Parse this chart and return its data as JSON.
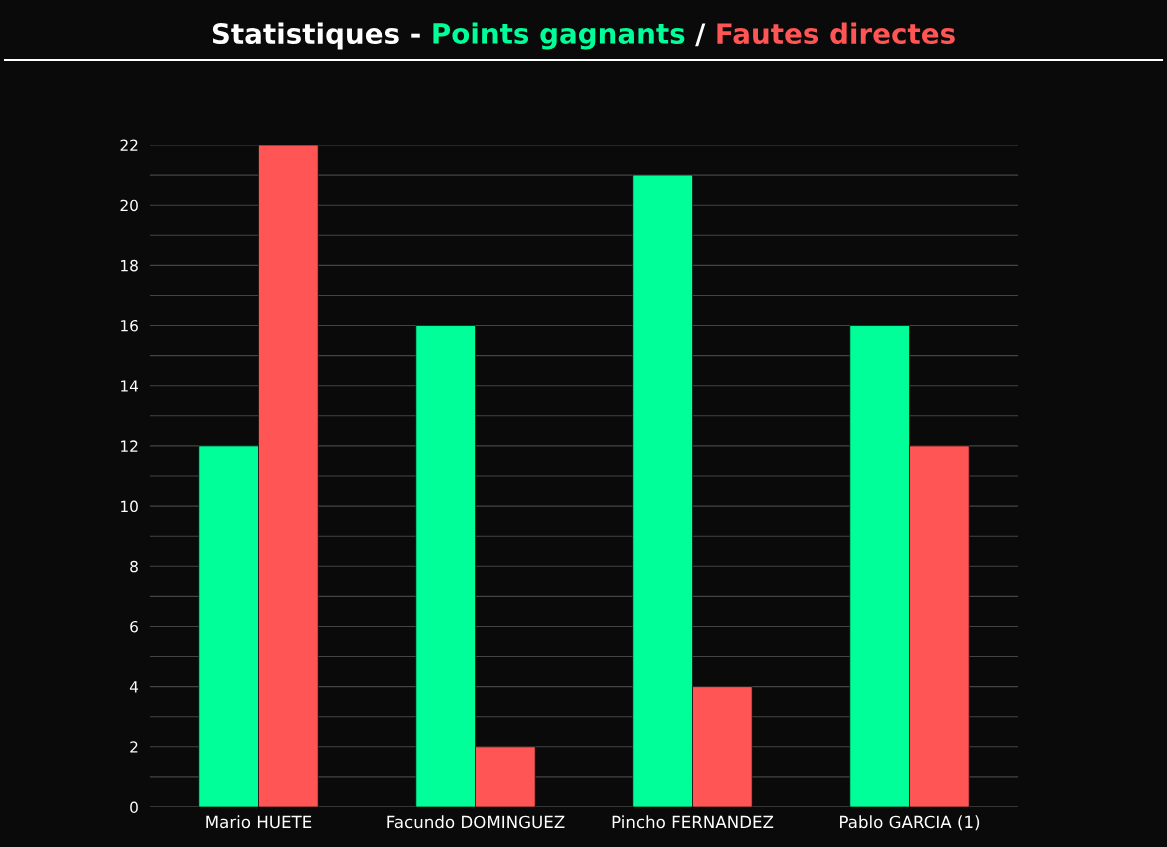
{
  "chart_data": {
    "type": "bar",
    "title": "Statistiques -",
    "annotations": [
      "/"
    ],
    "categories": [
      "Mario HUETE",
      "Facundo DOMINGUEZ",
      "Pincho FERNANDEZ",
      "Pablo GARCIA (1)"
    ],
    "series": [
      {
        "name": "Points gagnants",
        "color": "#00ff99",
        "values": [
          12,
          16,
          21,
          16
        ]
      },
      {
        "name": "Fautes directes",
        "color": "#ff5555",
        "values": [
          22,
          2,
          4,
          12
        ]
      }
    ],
    "ylim": [
      0,
      22
    ],
    "yticks": [
      0,
      {
        "value": 1,
        "label": null
      },
      2,
      {
        "value": 3,
        "label": null
      },
      4,
      {
        "value": 5,
        "label": null
      },
      6,
      {
        "value": 7,
        "label": null
      },
      8,
      {
        "value": 9,
        "label": null
      },
      10,
      {
        "value": 11,
        "label": null
      },
      12,
      {
        "value": 13,
        "label": null
      },
      14,
      {
        "value": 15,
        "label": null
      },
      16,
      {
        "value": 17,
        "label": null
      },
      18,
      {
        "value": 19,
        "label": null
      },
      20,
      {
        "value": 21,
        "label": null
      },
      22
    ],
    "grid": "y",
    "legend": "top"
  }
}
